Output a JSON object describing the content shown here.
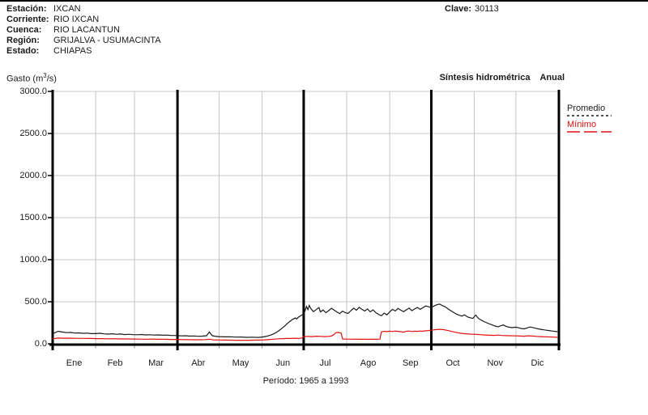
{
  "header": {
    "fields": [
      {
        "label": "Estación:",
        "value": "IXCAN"
      },
      {
        "label": "Corriente:",
        "value": "RIO IXCAN"
      },
      {
        "label": "Cuenca:",
        "value": "RIO LACANTUN"
      },
      {
        "label": "Región:",
        "value": "GRIJALVA - USUMACINTA"
      },
      {
        "label": "Estado:",
        "value": "CHIAPAS"
      }
    ],
    "clave_label": "Clave:",
    "clave_value": "30113"
  },
  "chart": {
    "y_axis_title_prefix": "Gasto (m",
    "y_axis_title_sup": "3",
    "y_axis_title_suffix": "/s)",
    "title": "Síntesis hidrométrica",
    "subtitle": "Anual",
    "period_caption": "Período: 1965 a 1993"
  },
  "chart_data": {
    "type": "line",
    "title": "Síntesis hidrométrica Anual",
    "ylabel": "Gasto (m3/s)",
    "units": "m3/s",
    "x_unit": "day of year (daily hydrograph, Ene-Dic)",
    "period": "1965 a 1993",
    "months": [
      "Ene",
      "Feb",
      "Mar",
      "Abr",
      "May",
      "Jun",
      "Jul",
      "Ago",
      "Sep",
      "Oct",
      "Nov",
      "Dic"
    ],
    "month_boundaries_day": [
      0,
      31,
      59,
      90,
      120,
      151,
      181,
      212,
      243,
      273,
      304,
      334,
      365
    ],
    "quarter_lines_day": [
      90,
      181,
      273
    ],
    "ylim": [
      0,
      3000
    ],
    "yticks": [
      0,
      500,
      1000,
      1500,
      2000,
      2500,
      3000
    ],
    "ytick_labels": [
      "0.0",
      "500.0",
      "1000.0",
      "1500.0",
      "2000.0",
      "2500.0",
      "3000.0"
    ],
    "grid": true,
    "legend_position": "outside-right-top",
    "colors": {
      "promedio": "#1a1a1a",
      "minimo": "#e01010",
      "grid": "#c9c9c9",
      "axis": "#000000"
    },
    "series": [
      {
        "name": "Promedio",
        "color": "#1a1a1a",
        "legend_dash": "3,3",
        "points": [
          [
            0,
            115
          ],
          [
            2,
            136
          ],
          [
            4,
            148
          ],
          [
            7,
            140
          ],
          [
            10,
            133
          ],
          [
            13,
            136
          ],
          [
            16,
            128
          ],
          [
            19,
            130
          ],
          [
            22,
            125
          ],
          [
            25,
            127
          ],
          [
            28,
            121
          ],
          [
            31,
            121
          ],
          [
            34,
            125
          ],
          [
            37,
            118
          ],
          [
            40,
            115
          ],
          [
            43,
            119
          ],
          [
            46,
            113
          ],
          [
            49,
            116
          ],
          [
            52,
            110
          ],
          [
            55,
            113
          ],
          [
            58,
            109
          ],
          [
            61,
            108
          ],
          [
            64,
            111
          ],
          [
            67,
            106
          ],
          [
            70,
            108
          ],
          [
            73,
            104
          ],
          [
            76,
            106
          ],
          [
            79,
            102
          ],
          [
            82,
            104
          ],
          [
            85,
            100
          ],
          [
            88,
            99
          ],
          [
            90,
            97
          ],
          [
            93,
            94
          ],
          [
            96,
            96
          ],
          [
            99,
            91
          ],
          [
            102,
            93
          ],
          [
            105,
            89
          ],
          [
            108,
            91
          ],
          [
            111,
            96
          ],
          [
            113,
            140
          ],
          [
            115,
            97
          ],
          [
            117,
            90
          ],
          [
            120,
            86
          ],
          [
            124,
            83
          ],
          [
            128,
            84
          ],
          [
            132,
            80
          ],
          [
            136,
            81
          ],
          [
            140,
            77
          ],
          [
            144,
            79
          ],
          [
            148,
            76
          ],
          [
            151,
            81
          ],
          [
            153,
            86
          ],
          [
            155,
            93
          ],
          [
            157,
            103
          ],
          [
            159,
            116
          ],
          [
            161,
            133
          ],
          [
            163,
            155
          ],
          [
            165,
            180
          ],
          [
            167,
            208
          ],
          [
            169,
            238
          ],
          [
            171,
            265
          ],
          [
            173,
            290
          ],
          [
            175,
            308
          ],
          [
            176,
            296
          ],
          [
            177,
            315
          ],
          [
            179,
            336
          ],
          [
            181,
            354
          ],
          [
            182,
            392
          ],
          [
            183,
            444
          ],
          [
            184,
            406
          ],
          [
            185,
            456
          ],
          [
            186,
            422
          ],
          [
            188,
            382
          ],
          [
            190,
            406
          ],
          [
            192,
            432
          ],
          [
            193,
            380
          ],
          [
            195,
            402
          ],
          [
            197,
            370
          ],
          [
            199,
            394
          ],
          [
            201,
            422
          ],
          [
            203,
            400
          ],
          [
            205,
            378
          ],
          [
            207,
            360
          ],
          [
            209,
            388
          ],
          [
            211,
            370
          ],
          [
            213,
            362
          ],
          [
            215,
            394
          ],
          [
            217,
            424
          ],
          [
            219,
            400
          ],
          [
            221,
            434
          ],
          [
            223,
            410
          ],
          [
            225,
            390
          ],
          [
            227,
            414
          ],
          [
            229,
            380
          ],
          [
            231,
            404
          ],
          [
            233,
            370
          ],
          [
            235,
            350
          ],
          [
            237,
            334
          ],
          [
            239,
            364
          ],
          [
            241,
            344
          ],
          [
            243,
            380
          ],
          [
            245,
            410
          ],
          [
            247,
            390
          ],
          [
            249,
            420
          ],
          [
            251,
            400
          ],
          [
            253,
            382
          ],
          [
            255,
            404
          ],
          [
            257,
            424
          ],
          [
            259,
            394
          ],
          [
            261,
            414
          ],
          [
            263,
            432
          ],
          [
            265,
            410
          ],
          [
            267,
            430
          ],
          [
            269,
            450
          ],
          [
            271,
            440
          ],
          [
            273,
            430
          ],
          [
            275,
            450
          ],
          [
            277,
            464
          ],
          [
            279,
            472
          ],
          [
            281,
            454
          ],
          [
            283,
            440
          ],
          [
            285,
            416
          ],
          [
            287,
            394
          ],
          [
            289,
            374
          ],
          [
            291,
            354
          ],
          [
            293,
            340
          ],
          [
            295,
            330
          ],
          [
            297,
            344
          ],
          [
            299,
            320
          ],
          [
            301,
            310
          ],
          [
            303,
            302
          ],
          [
            305,
            342
          ],
          [
            307,
            302
          ],
          [
            309,
            282
          ],
          [
            311,
            264
          ],
          [
            313,
            250
          ],
          [
            315,
            236
          ],
          [
            317,
            224
          ],
          [
            319,
            212
          ],
          [
            321,
            202
          ],
          [
            323,
            214
          ],
          [
            325,
            224
          ],
          [
            327,
            207
          ],
          [
            329,
            198
          ],
          [
            331,
            192
          ],
          [
            334,
            198
          ],
          [
            336,
            190
          ],
          [
            338,
            182
          ],
          [
            340,
            178
          ],
          [
            342,
            188
          ],
          [
            344,
            200
          ],
          [
            346,
            194
          ],
          [
            348,
            186
          ],
          [
            350,
            178
          ],
          [
            352,
            172
          ],
          [
            354,
            166
          ],
          [
            356,
            162
          ],
          [
            358,
            158
          ],
          [
            360,
            152
          ],
          [
            362,
            148
          ],
          [
            364,
            144
          ]
        ]
      },
      {
        "name": "Mínimo",
        "color": "#e01010",
        "legend_dash": "16,5",
        "points": [
          [
            0,
            60
          ],
          [
            4,
            68
          ],
          [
            8,
            66
          ],
          [
            12,
            67
          ],
          [
            16,
            65
          ],
          [
            20,
            64
          ],
          [
            24,
            64
          ],
          [
            28,
            63
          ],
          [
            31,
            62
          ],
          [
            35,
            62
          ],
          [
            39,
            60
          ],
          [
            43,
            61
          ],
          [
            47,
            59
          ],
          [
            51,
            58
          ],
          [
            55,
            58
          ],
          [
            59,
            57
          ],
          [
            63,
            56
          ],
          [
            67,
            55
          ],
          [
            71,
            56
          ],
          [
            75,
            54
          ],
          [
            79,
            54
          ],
          [
            83,
            53
          ],
          [
            87,
            52
          ],
          [
            90,
            52
          ],
          [
            94,
            50
          ],
          [
            98,
            49
          ],
          [
            102,
            48
          ],
          [
            106,
            48
          ],
          [
            110,
            50
          ],
          [
            113,
            55
          ],
          [
            116,
            47
          ],
          [
            120,
            45
          ],
          [
            124,
            44
          ],
          [
            128,
            43
          ],
          [
            132,
            42
          ],
          [
            136,
            42
          ],
          [
            140,
            42
          ],
          [
            144,
            43
          ],
          [
            148,
            44
          ],
          [
            151,
            45
          ],
          [
            154,
            48
          ],
          [
            157,
            52
          ],
          [
            160,
            56
          ],
          [
            163,
            60
          ],
          [
            166,
            62
          ],
          [
            169,
            64
          ],
          [
            172,
            63
          ],
          [
            175,
            66
          ],
          [
            178,
            64
          ],
          [
            180,
            70
          ],
          [
            181,
            86
          ],
          [
            184,
            88
          ],
          [
            187,
            86
          ],
          [
            190,
            90
          ],
          [
            193,
            88
          ],
          [
            196,
            86
          ],
          [
            199,
            88
          ],
          [
            201,
            92
          ],
          [
            203,
            112
          ],
          [
            204,
            132
          ],
          [
            206,
            136
          ],
          [
            208,
            126
          ],
          [
            209,
            58
          ],
          [
            212,
            56
          ],
          [
            215,
            55
          ],
          [
            218,
            56
          ],
          [
            221,
            54
          ],
          [
            224,
            55
          ],
          [
            227,
            53
          ],
          [
            230,
            55
          ],
          [
            233,
            54
          ],
          [
            236,
            56
          ],
          [
            237,
            140
          ],
          [
            239,
            148
          ],
          [
            241,
            145
          ],
          [
            243,
            150
          ],
          [
            245,
            146
          ],
          [
            247,
            152
          ],
          [
            249,
            148
          ],
          [
            251,
            144
          ],
          [
            253,
            138
          ],
          [
            255,
            148
          ],
          [
            257,
            152
          ],
          [
            259,
            146
          ],
          [
            261,
            150
          ],
          [
            263,
            148
          ],
          [
            265,
            152
          ],
          [
            267,
            150
          ],
          [
            269,
            155
          ],
          [
            271,
            158
          ],
          [
            273,
            162
          ],
          [
            276,
            168
          ],
          [
            279,
            172
          ],
          [
            282,
            168
          ],
          [
            285,
            158
          ],
          [
            288,
            146
          ],
          [
            291,
            136
          ],
          [
            294,
            126
          ],
          [
            297,
            120
          ],
          [
            300,
            116
          ],
          [
            303,
            113
          ],
          [
            306,
            112
          ],
          [
            309,
            108
          ],
          [
            312,
            105
          ],
          [
            315,
            102
          ],
          [
            318,
            100
          ],
          [
            321,
            104
          ],
          [
            324,
            99
          ],
          [
            327,
            97
          ],
          [
            330,
            96
          ],
          [
            334,
            94
          ],
          [
            337,
            92
          ],
          [
            340,
            90
          ],
          [
            343,
            95
          ],
          [
            346,
            92
          ],
          [
            349,
            88
          ],
          [
            352,
            86
          ],
          [
            355,
            84
          ],
          [
            358,
            82
          ],
          [
            361,
            80
          ],
          [
            364,
            77
          ]
        ]
      }
    ]
  }
}
